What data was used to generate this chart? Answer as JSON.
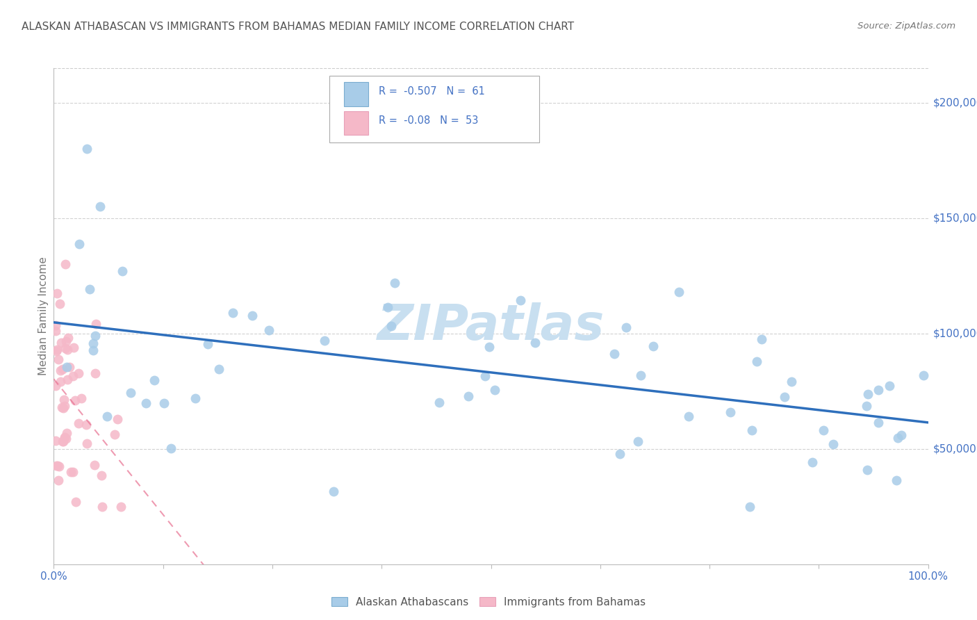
{
  "title": "ALASKAN ATHABASCAN VS IMMIGRANTS FROM BAHAMAS MEDIAN FAMILY INCOME CORRELATION CHART",
  "source": "Source: ZipAtlas.com",
  "ylabel": "Median Family Income",
  "r_blue": -0.507,
  "n_blue": 61,
  "r_pink": -0.08,
  "n_pink": 53,
  "legend_blue_label": "Alaskan Athabascans",
  "legend_pink_label": "Immigrants from Bahamas",
  "blue_scatter_color": "#a8cce8",
  "pink_scatter_color": "#f5b8c8",
  "blue_line_color": "#2e6fbc",
  "pink_line_color": "#e87090",
  "background_color": "#ffffff",
  "grid_color": "#cccccc",
  "ylim_min": 0,
  "ylim_max": 215000,
  "watermark": "ZIPatlas",
  "watermark_color": "#c8dff0",
  "title_color": "#555555",
  "tick_color": "#4472c4",
  "source_color": "#777777"
}
